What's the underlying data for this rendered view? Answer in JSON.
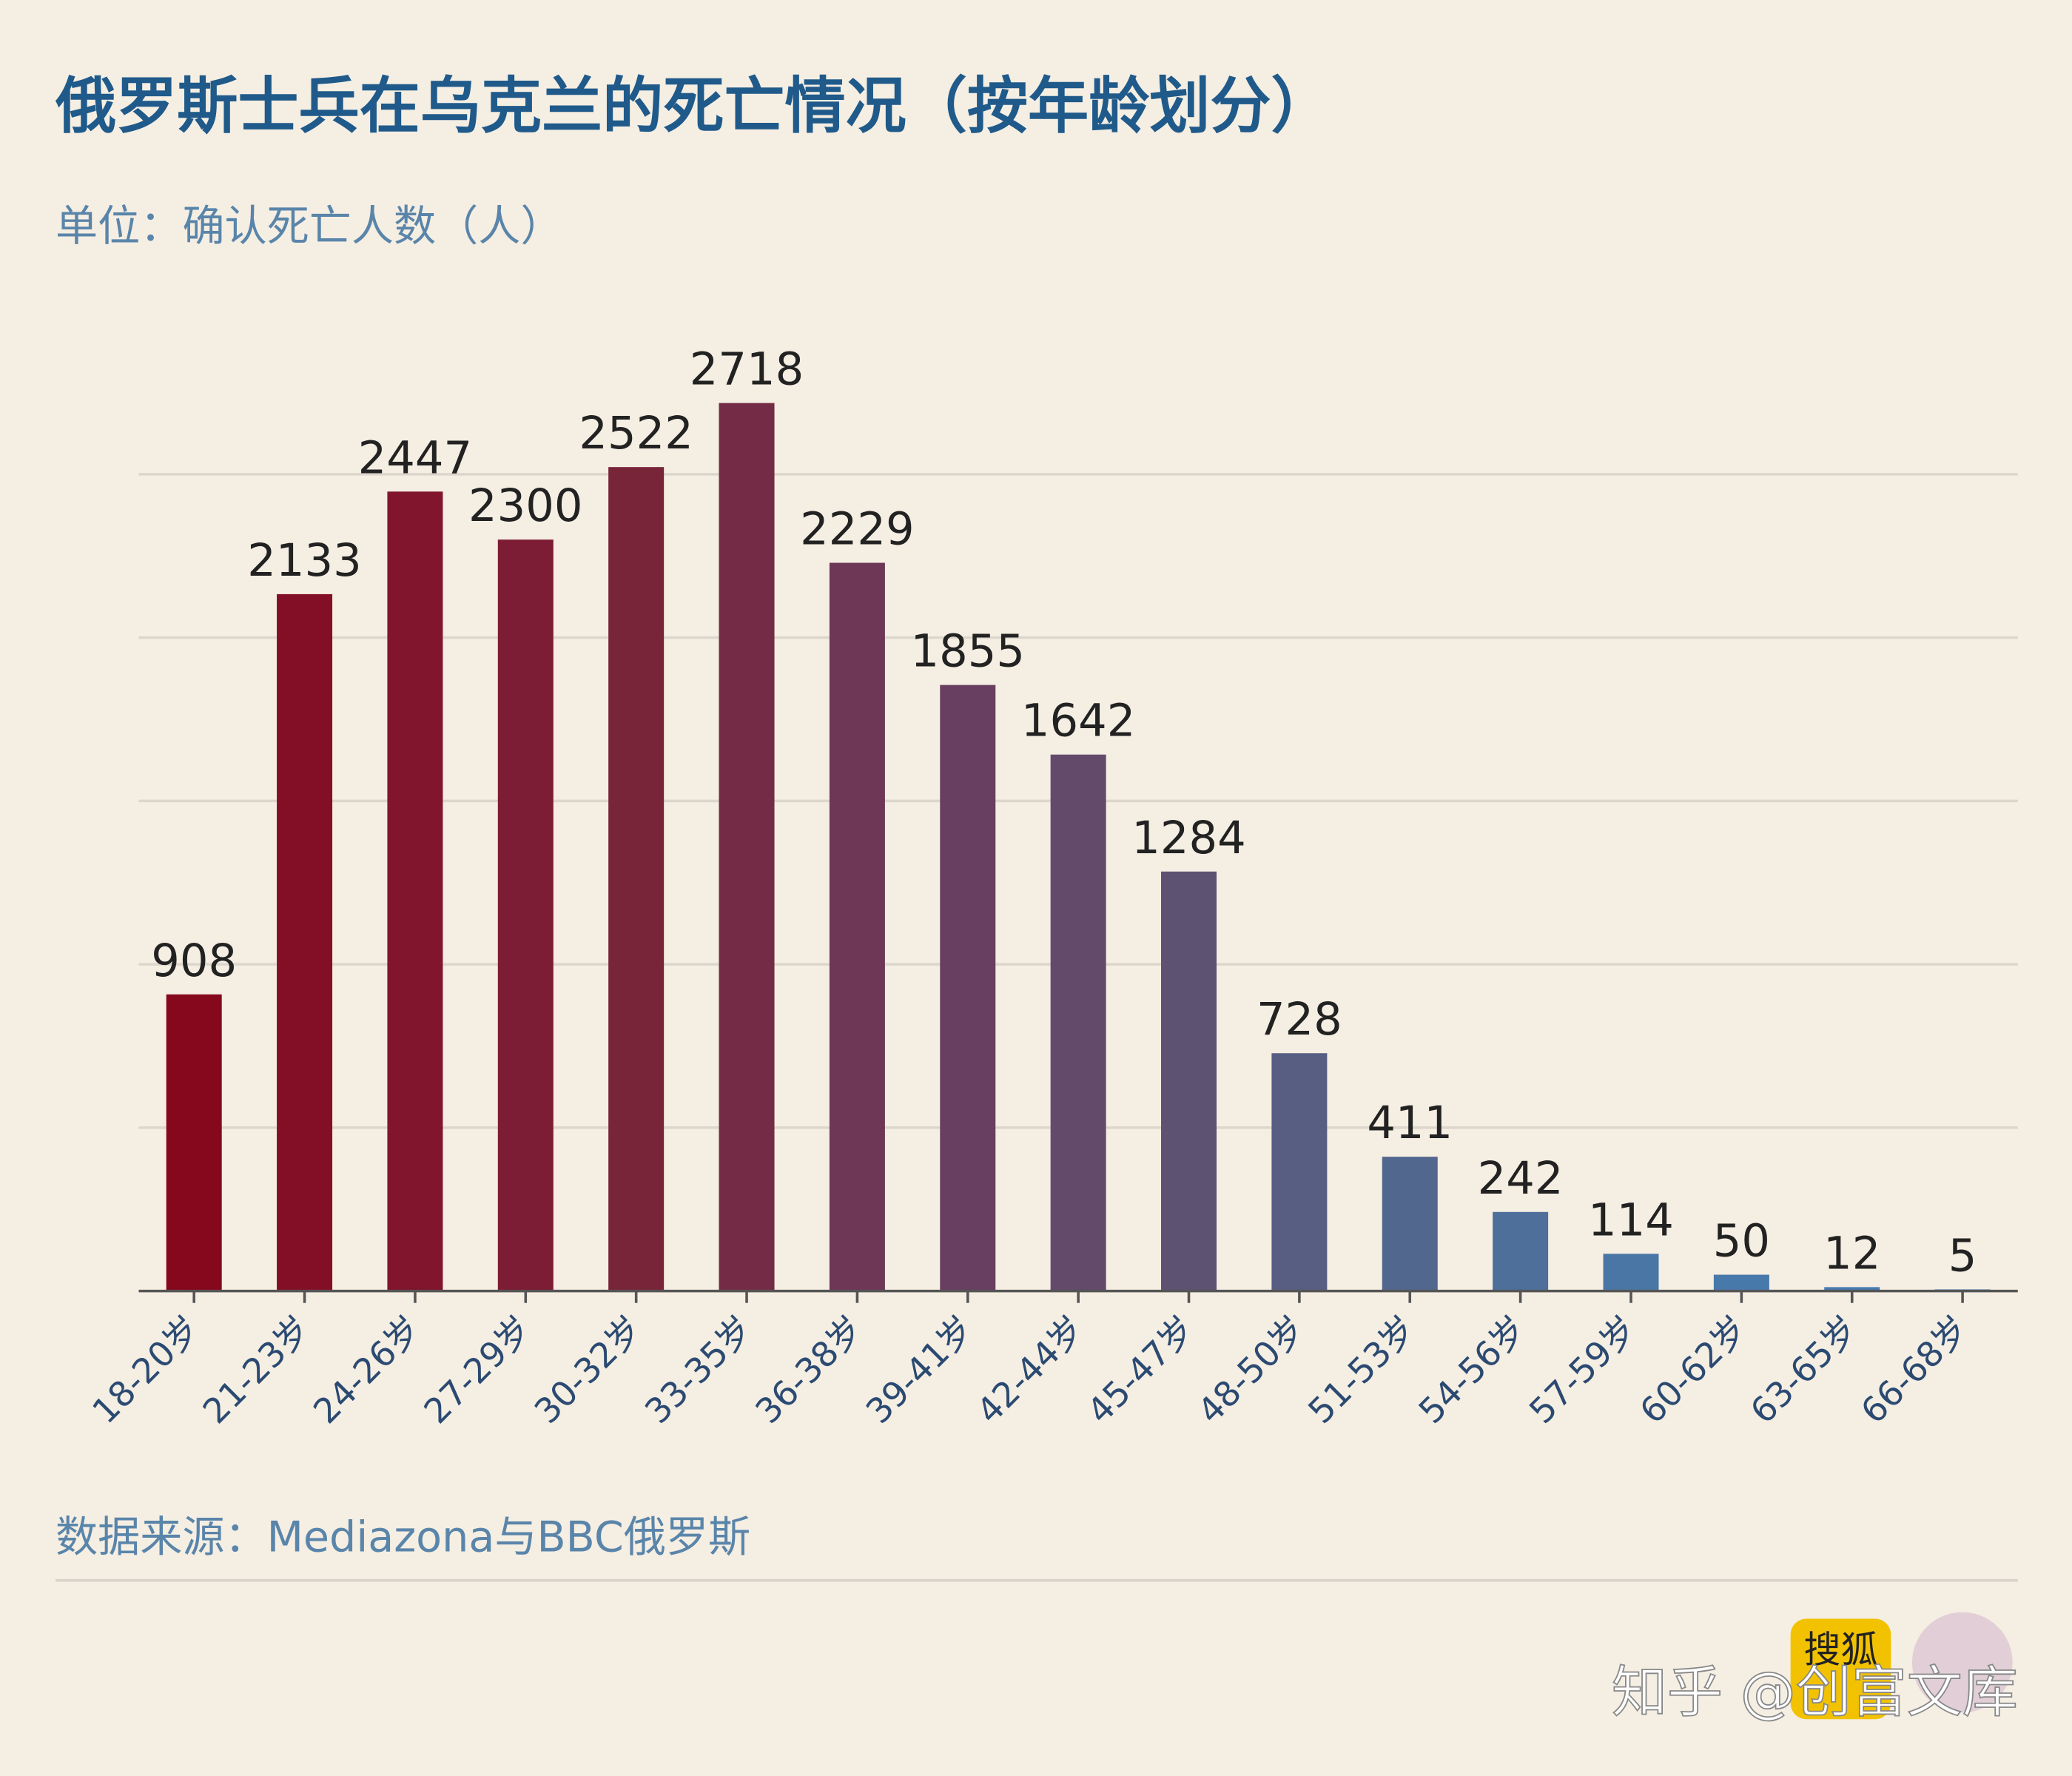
{
  "chart_data": {
    "type": "bar",
    "title": "俄罗斯士兵在乌克兰的死亡情况（按年龄划分）",
    "subtitle": "单位：确认死亡人数（人）",
    "source": "数据来源：Mediazona与BBC俄罗斯",
    "watermark": "知乎 @创富文库",
    "logo": "搜狐",
    "categories": [
      "18-20岁",
      "21-23岁",
      "24-26岁",
      "27-29岁",
      "30-32岁",
      "33-35岁",
      "36-38岁",
      "39-41岁",
      "42-44岁",
      "45-47岁",
      "48-50岁",
      "51-53岁",
      "54-56岁",
      "57-59岁",
      "60-62岁",
      "63-65岁",
      "66-68岁"
    ],
    "values": [
      908,
      2133,
      2447,
      2300,
      2522,
      2718,
      2229,
      1855,
      1642,
      1284,
      728,
      411,
      242,
      114,
      50,
      12,
      5
    ],
    "colors": [
      "#85081d",
      "#830f27",
      "#81152d",
      "#7d1d35",
      "#782439",
      "#742b45",
      "#6e3756",
      "#683f60",
      "#634a6b",
      "#5d5272",
      "#575e82",
      "#52678e",
      "#4d6f9a",
      "#4a76a5",
      "#4879ab",
      "#477cb0",
      "#477db2"
    ],
    "ylim": [
      0,
      2900
    ],
    "yticks": [
      0,
      500,
      1000,
      1500,
      2000,
      2500
    ],
    "grid": true
  }
}
